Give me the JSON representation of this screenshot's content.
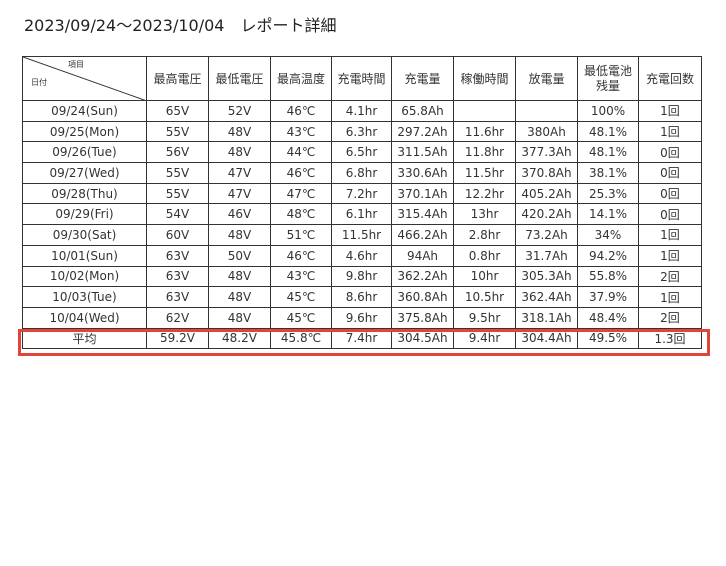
{
  "title": "2023/09/24～2023/10/04　レポート詳細",
  "table": {
    "corner_top": "項目",
    "corner_left": "日付",
    "headers": [
      "最高電圧",
      "最低電圧",
      "最高温度",
      "充電時間",
      "充電量",
      "稼働時間",
      "放電量",
      "最低電池残量",
      "充電回数"
    ],
    "rows": [
      [
        "09/24(Sun)",
        "65V",
        "52V",
        "46℃",
        "4.1hr",
        "65.8Ah",
        "",
        "",
        "100%",
        "1回"
      ],
      [
        "09/25(Mon)",
        "55V",
        "48V",
        "43℃",
        "6.3hr",
        "297.2Ah",
        "11.6hr",
        "380Ah",
        "48.1%",
        "1回"
      ],
      [
        "09/26(Tue)",
        "56V",
        "48V",
        "44℃",
        "6.5hr",
        "311.5Ah",
        "11.8hr",
        "377.3Ah",
        "48.1%",
        "0回"
      ],
      [
        "09/27(Wed)",
        "55V",
        "47V",
        "46℃",
        "6.8hr",
        "330.6Ah",
        "11.5hr",
        "370.8Ah",
        "38.1%",
        "0回"
      ],
      [
        "09/28(Thu)",
        "55V",
        "47V",
        "47℃",
        "7.2hr",
        "370.1Ah",
        "12.2hr",
        "405.2Ah",
        "25.3%",
        "0回"
      ],
      [
        "09/29(Fri)",
        "54V",
        "46V",
        "48℃",
        "6.1hr",
        "315.4Ah",
        "13hr",
        "420.2Ah",
        "14.1%",
        "0回"
      ],
      [
        "09/30(Sat)",
        "60V",
        "48V",
        "51℃",
        "11.5hr",
        "466.2Ah",
        "2.8hr",
        "73.2Ah",
        "34%",
        "1回"
      ],
      [
        "10/01(Sun)",
        "63V",
        "50V",
        "46℃",
        "4.6hr",
        "94Ah",
        "0.8hr",
        "31.7Ah",
        "94.2%",
        "1回"
      ],
      [
        "10/02(Mon)",
        "63V",
        "48V",
        "43℃",
        "9.8hr",
        "362.2Ah",
        "10hr",
        "305.3Ah",
        "55.8%",
        "2回"
      ],
      [
        "10/03(Tue)",
        "63V",
        "48V",
        "45℃",
        "8.6hr",
        "360.8Ah",
        "10.5hr",
        "362.4Ah",
        "37.9%",
        "1回"
      ],
      [
        "10/04(Wed)",
        "62V",
        "48V",
        "45℃",
        "9.6hr",
        "375.8Ah",
        "9.5hr",
        "318.1Ah",
        "48.4%",
        "2回"
      ]
    ],
    "average": [
      "平均",
      "59.2V",
      "48.2V",
      "45.8℃",
      "7.4hr",
      "304.5Ah",
      "9.4hr",
      "304.4Ah",
      "49.5%",
      "1.3回"
    ]
  },
  "highlight_color": "#e0443a"
}
